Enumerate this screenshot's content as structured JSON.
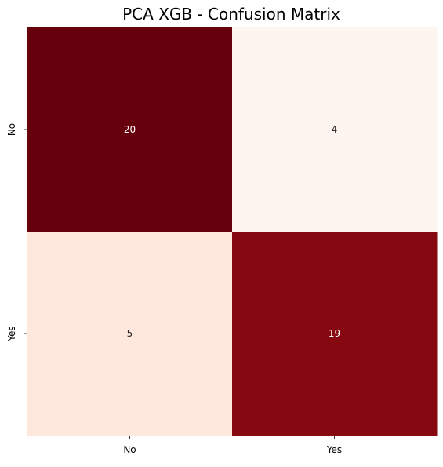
{
  "chart_data": {
    "type": "heatmap",
    "title": "PCA XGB - Confusion Matrix",
    "x_categories": [
      "No",
      "Yes"
    ],
    "y_categories": [
      "No",
      "Yes"
    ],
    "values": [
      [
        20,
        4
      ],
      [
        5,
        19
      ]
    ],
    "colormap": "Reds",
    "colorbar": false,
    "grid": false,
    "cell_colors": [
      [
        "#67000d",
        "#fff5f0"
      ],
      [
        "#fee8de",
        "#860811"
      ]
    ],
    "text_colors": [
      [
        "#ffffff",
        "#262626"
      ],
      [
        "#262626",
        "#ffffff"
      ]
    ]
  }
}
